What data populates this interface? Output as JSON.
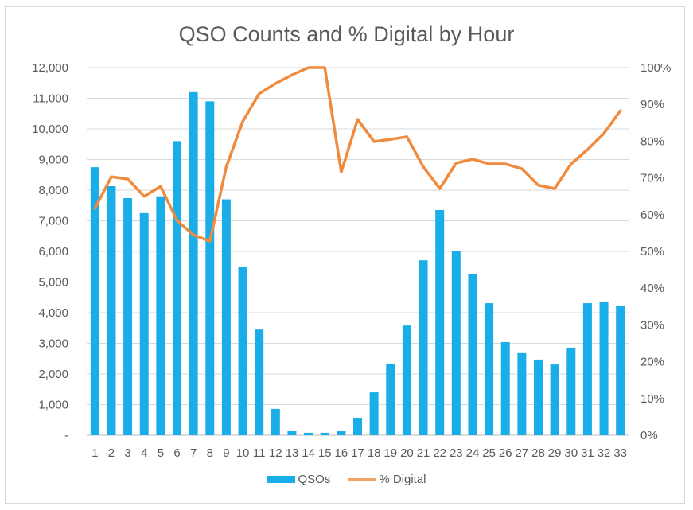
{
  "chart_data": {
    "type": "bar",
    "combo": "bar+line (secondary axis)",
    "title": "QSO Counts and % Digital by Hour",
    "xlabel": "",
    "ylabel": "",
    "y2label": "",
    "categories": [
      "1",
      "2",
      "3",
      "4",
      "5",
      "6",
      "7",
      "8",
      "9",
      "10",
      "11",
      "12",
      "13",
      "14",
      "15",
      "16",
      "17",
      "18",
      "19",
      "20",
      "21",
      "22",
      "23",
      "24",
      "25",
      "26",
      "27",
      "28",
      "29",
      "30",
      "31",
      "32",
      "33"
    ],
    "series": [
      {
        "name": "QSOs",
        "type": "bar",
        "axis": "primary",
        "color": "#1aaee8",
        "values": [
          8750,
          8130,
          7740,
          7250,
          7800,
          9600,
          11200,
          10900,
          7700,
          5500,
          3450,
          860,
          130,
          80,
          80,
          130,
          570,
          1400,
          2340,
          3580,
          5710,
          7350,
          6000,
          5270,
          4310,
          3040,
          2680,
          2470,
          2310,
          2860,
          4310,
          4360,
          4230
        ]
      },
      {
        "name": "% Digital",
        "type": "line",
        "axis": "secondary",
        "color": "#f08a3c",
        "values": [
          61.7,
          70.3,
          69.7,
          65.0,
          67.7,
          58.4,
          54.5,
          52.8,
          73.0,
          85.3,
          92.9,
          95.7,
          98.0,
          100,
          100,
          71.6,
          85.9,
          79.9,
          80.5,
          81.2,
          73.0,
          67.1,
          74.0,
          75.1,
          73.8,
          73.8,
          72.5,
          68.0,
          67.1,
          73.8,
          77.7,
          82.1,
          88.3
        ]
      }
    ],
    "ylim": [
      0,
      12000
    ],
    "y2lim": [
      0,
      100
    ],
    "y_ticks": [
      "-",
      "1,000",
      "2,000",
      "3,000",
      "4,000",
      "5,000",
      "6,000",
      "7,000",
      "8,000",
      "9,000",
      "10,000",
      "11,000",
      "12,000"
    ],
    "y2_ticks": [
      "0%",
      "10%",
      "20%",
      "30%",
      "40%",
      "50%",
      "60%",
      "70%",
      "80%",
      "90%",
      "100%"
    ],
    "grid": true,
    "legend_position": "bottom",
    "legend": [
      "QSOs",
      "% Digital"
    ]
  }
}
